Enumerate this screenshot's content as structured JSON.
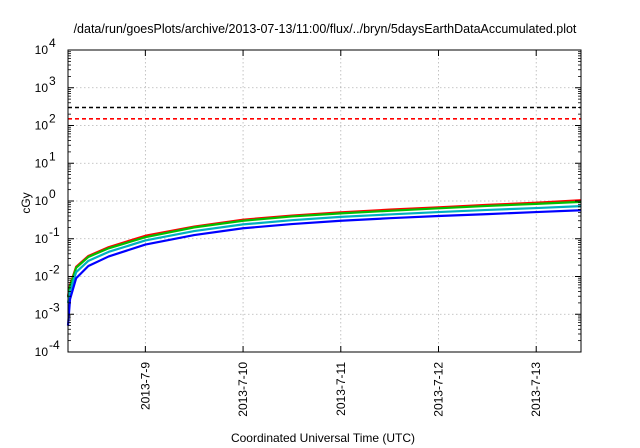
{
  "chart_data": {
    "type": "line",
    "title": "/data/run/goesPlots/archive/2013-07-13/11:00/flux/../bryn/5daysEarthDataAccumulated.plot",
    "xlabel": "Coordinated Universal Time (UTC)",
    "ylabel": "cGy",
    "xlim": [
      "2013-07-08T05:00",
      "2013-07-13T11:00"
    ],
    "ylim": [
      0.0001,
      10000
    ],
    "yscale": "log",
    "grid": true,
    "x_ticks": [
      "2013-7-9",
      "2013-7-10",
      "2013-7-11",
      "2013-7-12",
      "2013-7-13"
    ],
    "y_ticks": [
      {
        "base": "10",
        "exp": "-4"
      },
      {
        "base": "10",
        "exp": "-3"
      },
      {
        "base": "10",
        "exp": "-2"
      },
      {
        "base": "10",
        "exp": "-1"
      },
      {
        "base": "10",
        "exp": "0"
      },
      {
        "base": "10",
        "exp": "1"
      },
      {
        "base": "10",
        "exp": "2"
      },
      {
        "base": "10",
        "exp": "3"
      },
      {
        "base": "10",
        "exp": "4"
      }
    ],
    "thresholds": [
      {
        "value": 300,
        "color": "#000000",
        "style": "dashed"
      },
      {
        "value": 150,
        "color": "#ff0000",
        "style": "dashed"
      }
    ],
    "series": [
      {
        "color": "#ff0000",
        "x": [
          "2013-07-08T05:00",
          "2013-07-08T05:30",
          "2013-07-08T07:00",
          "2013-07-08T10:00",
          "2013-07-08T15:00",
          "2013-07-09T00:00",
          "2013-07-09T12:00",
          "2013-07-10T00:00",
          "2013-07-10T12:00",
          "2013-07-11T00:00",
          "2013-07-11T12:00",
          "2013-07-12T00:00",
          "2013-07-12T12:00",
          "2013-07-13T00:00",
          "2013-07-13T11:00"
        ],
        "y": [
          0.003,
          0.006,
          0.018,
          0.035,
          0.06,
          0.12,
          0.21,
          0.32,
          0.41,
          0.5,
          0.59,
          0.68,
          0.79,
          0.9,
          1.05
        ]
      },
      {
        "color": "#00c000",
        "x": [
          "2013-07-08T05:00",
          "2013-07-08T05:30",
          "2013-07-08T07:00",
          "2013-07-08T10:00",
          "2013-07-08T15:00",
          "2013-07-09T00:00",
          "2013-07-09T12:00",
          "2013-07-10T00:00",
          "2013-07-10T12:00",
          "2013-07-11T00:00",
          "2013-07-11T12:00",
          "2013-07-12T00:00",
          "2013-07-12T12:00",
          "2013-07-13T00:00",
          "2013-07-13T11:00"
        ],
        "y": [
          0.0028,
          0.0055,
          0.017,
          0.033,
          0.056,
          0.11,
          0.2,
          0.3,
          0.39,
          0.47,
          0.55,
          0.64,
          0.74,
          0.84,
          0.95
        ]
      },
      {
        "color": "#00b0c0",
        "x": [
          "2013-07-08T05:00",
          "2013-07-08T05:30",
          "2013-07-08T07:00",
          "2013-07-08T10:00",
          "2013-07-08T15:00",
          "2013-07-09T00:00",
          "2013-07-09T12:00",
          "2013-07-10T00:00",
          "2013-07-10T12:00",
          "2013-07-11T00:00",
          "2013-07-11T12:00",
          "2013-07-12T00:00",
          "2013-07-12T12:00",
          "2013-07-13T00:00",
          "2013-07-13T11:00"
        ],
        "y": [
          0.002,
          0.004,
          0.013,
          0.026,
          0.045,
          0.09,
          0.16,
          0.24,
          0.31,
          0.38,
          0.44,
          0.51,
          0.58,
          0.65,
          0.73
        ]
      },
      {
        "color": "#0000ff",
        "x": [
          "2013-07-08T05:00",
          "2013-07-08T05:30",
          "2013-07-08T07:00",
          "2013-07-08T10:00",
          "2013-07-08T15:00",
          "2013-07-09T00:00",
          "2013-07-09T12:00",
          "2013-07-10T00:00",
          "2013-07-10T12:00",
          "2013-07-11T00:00",
          "2013-07-11T12:00",
          "2013-07-12T00:00",
          "2013-07-12T12:00",
          "2013-07-13T00:00",
          "2013-07-13T11:00"
        ],
        "y": [
          0.0005,
          0.0025,
          0.009,
          0.019,
          0.034,
          0.07,
          0.125,
          0.19,
          0.245,
          0.3,
          0.35,
          0.4,
          0.45,
          0.51,
          0.57
        ]
      }
    ]
  }
}
